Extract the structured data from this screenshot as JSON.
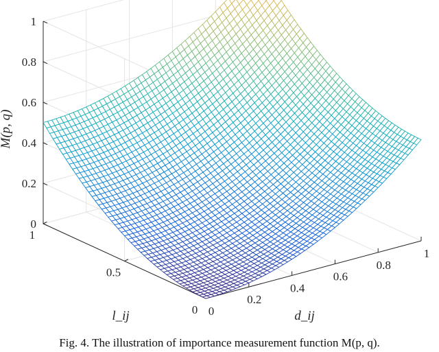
{
  "caption": "Fig. 4. The illustration of importance measurement function M(p, q).",
  "chart_data": {
    "type": "surface",
    "function": "M = 0.5*(d_ij^2 + l_ij^2), rendered as a mesh grid",
    "grid_points_per_axis": 51,
    "xlabel": "d_ij",
    "ylabel": "l_ij",
    "zlabel": "M(p, q)",
    "xlim": [
      0,
      1
    ],
    "ylim": [
      0,
      1
    ],
    "zlim": [
      0,
      1
    ],
    "x_ticks": [
      "0",
      "0.2",
      "0.4",
      "0.6",
      "0.8",
      "1"
    ],
    "y_ticks": [
      "0",
      "0.5",
      "1"
    ],
    "z_ticks": [
      "0",
      "0.2",
      "0.4",
      "0.6",
      "0.8",
      "1"
    ],
    "corner_values": [
      {
        "d_ij": 0,
        "l_ij": 0,
        "M": 0
      },
      {
        "d_ij": 1,
        "l_ij": 0,
        "M": 0.5
      },
      {
        "d_ij": 0,
        "l_ij": 1,
        "M": 0.5
      },
      {
        "d_ij": 1,
        "l_ij": 1,
        "M": 1
      }
    ],
    "colormap": "parula",
    "grid": "on"
  }
}
